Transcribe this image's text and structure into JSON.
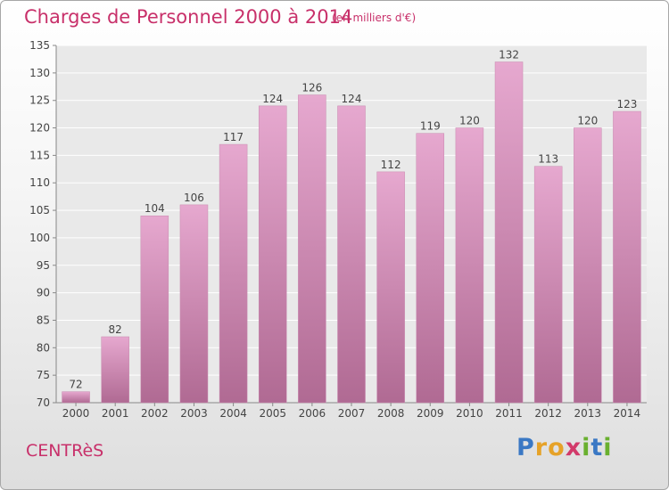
{
  "chart_data": {
    "type": "bar",
    "title": "Charges de Personnel 2000 à 2014",
    "subtitle": "(en milliers d'€)",
    "categories": [
      "2000",
      "2001",
      "2002",
      "2003",
      "2004",
      "2005",
      "2006",
      "2007",
      "2008",
      "2009",
      "2010",
      "2011",
      "2012",
      "2013",
      "2014"
    ],
    "values": [
      72,
      82,
      104,
      106,
      117,
      124,
      126,
      124,
      112,
      119,
      120,
      132,
      113,
      120,
      123
    ],
    "ylim": [
      70,
      135
    ],
    "yticks": [
      70,
      75,
      80,
      85,
      90,
      95,
      100,
      105,
      110,
      115,
      120,
      125,
      130,
      135
    ],
    "grid": true,
    "bar_color_top": "#e6a8cf",
    "bar_color_bottom": "#b06a93"
  },
  "footer": {
    "city": "CENTRèS",
    "logo_letters": [
      "P",
      "r",
      "o",
      "x",
      "i",
      "t",
      "i"
    ]
  }
}
